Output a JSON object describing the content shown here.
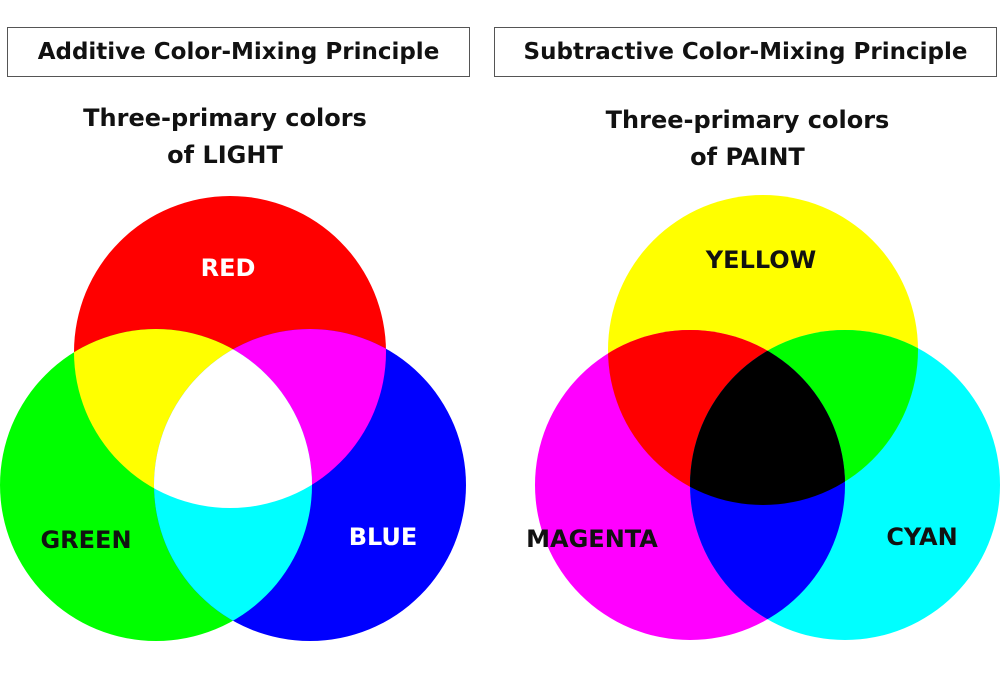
{
  "additive": {
    "title": "Additive Color-Mixing Principle",
    "subtitle_line1": "Three-primary colors",
    "subtitle_line2": "of LIGHT",
    "labels": {
      "red": "RED",
      "green": "GREEN",
      "blue": "BLUE"
    },
    "colors": {
      "red": "#ff0000",
      "green": "#00ff00",
      "blue": "#0000ff",
      "yellow": "#ffff00",
      "magenta": "#ff00ff",
      "cyan": "#00ffff",
      "white": "#ffffff"
    }
  },
  "subtractive": {
    "title": "Subtractive Color-Mixing Principle",
    "subtitle_line1": "Three-primary colors",
    "subtitle_line2": "of PAINT",
    "labels": {
      "yellow": "YELLOW",
      "magenta": "MAGENTA",
      "cyan": "CYAN"
    },
    "colors": {
      "yellow": "#ffff00",
      "magenta": "#ff00ff",
      "cyan": "#00ffff",
      "red": "#ff0000",
      "green": "#00ff00",
      "blue": "#0000ff",
      "black": "#000000"
    }
  }
}
